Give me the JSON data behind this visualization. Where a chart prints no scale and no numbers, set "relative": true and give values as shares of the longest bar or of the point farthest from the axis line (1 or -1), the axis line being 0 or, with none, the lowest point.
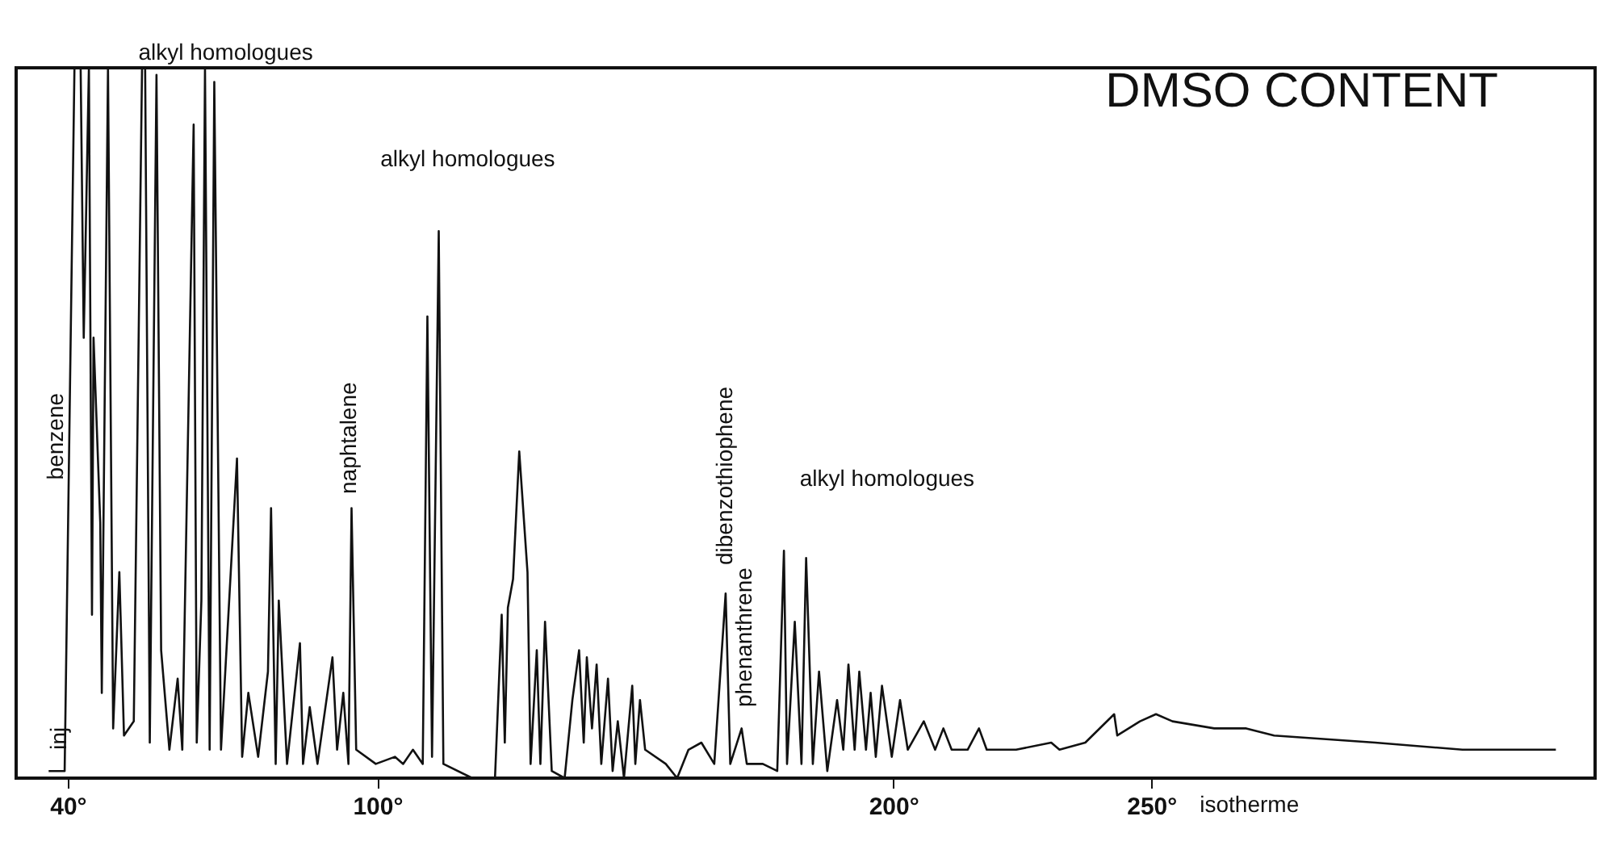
{
  "chart_data": {
    "type": "line",
    "title": "DMSO CONTENT",
    "relative": true,
    "color": "#111111",
    "line_style": "solid",
    "marker": "none",
    "grid": false,
    "tick_labels": "x",
    "xlim": [
      30,
      336
    ],
    "xticks": [
      {
        "value": 40,
        "label": "40°"
      },
      {
        "value": 100,
        "label": "100°"
      },
      {
        "value": 200,
        "label": "200°"
      },
      {
        "value": 250,
        "label": "250°"
      }
    ],
    "x": [
      36.3,
      39.4,
      41.3,
      42.5,
      43.1,
      44.1,
      44.7,
      45.0,
      46.3,
      46.6,
      47.8,
      48.8,
      50.0,
      50.9,
      52.8,
      54.4,
      55.0,
      55.9,
      57.2,
      58.1,
      59.7,
      61.3,
      62.2,
      64.4,
      65.0,
      65.9,
      66.6,
      67.5,
      68.4,
      69.7,
      72.8,
      73.8,
      75.0,
      76.9,
      78.8,
      79.4,
      80.3,
      80.9,
      82.5,
      85.0,
      85.6,
      86.9,
      88.4,
      91.3,
      92.2,
      93.4,
      94.4,
      95.0,
      95.9,
      99.7,
      103.4,
      105.0,
      106.9,
      108.8,
      109.7,
      110.6,
      111.9,
      112.8,
      118.4,
      122.8,
      124.1,
      124.7,
      125.3,
      126.3,
      127.5,
      129.1,
      129.7,
      130.9,
      131.6,
      132.5,
      133.8,
      136.3,
      137.8,
      139.1,
      140.0,
      140.6,
      141.6,
      142.5,
      143.4,
      144.7,
      145.6,
      146.6,
      147.8,
      149.4,
      150.0,
      150.9,
      151.9,
      155.9,
      158.1,
      160.3,
      162.8,
      165.3,
      167.5,
      168.4,
      170.6,
      171.6,
      174.7,
      177.5,
      178.8,
      179.4,
      180.9,
      182.2,
      183.1,
      184.4,
      185.6,
      187.2,
      189.1,
      190.3,
      191.3,
      192.5,
      193.4,
      194.7,
      195.6,
      196.6,
      197.8,
      199.7,
      201.3,
      202.8,
      205.9,
      208.1,
      209.7,
      211.3,
      214.4,
      216.6,
      218.1,
      223.8,
      230.6,
      232.2,
      237.2,
      242.8,
      243.4,
      247.8,
      250.9,
      254.1,
      262.2,
      268.4,
      273.8,
      293.4,
      310.3,
      328.4
    ],
    "values": [
      0.01,
      0.01,
      1,
      1,
      0.62,
      1,
      0.23,
      0.62,
      0.36,
      0.12,
      1,
      0.07,
      0.29,
      0.06,
      0.08,
      1,
      1,
      0.05,
      0.99,
      0.18,
      0.04,
      0.14,
      0.04,
      0.92,
      0.05,
      0.25,
      1,
      0.04,
      0.98,
      0.04,
      0.45,
      0.03,
      0.12,
      0.03,
      0.15,
      0.38,
      0.02,
      0.25,
      0.02,
      0.19,
      0.02,
      0.1,
      0.02,
      0.17,
      0.04,
      0.12,
      0.02,
      0.38,
      0.04,
      0.02,
      0.03,
      0.02,
      0.04,
      0.02,
      0.65,
      0.03,
      0.77,
      0.02,
      0,
      0,
      0.23,
      0.05,
      0.24,
      0.28,
      0.46,
      0.29,
      0.02,
      0.18,
      0.02,
      0.22,
      0.01,
      0,
      0.11,
      0.18,
      0.05,
      0.17,
      0.07,
      0.16,
      0.02,
      0.14,
      0.01,
      0.08,
      0,
      0.13,
      0.02,
      0.11,
      0.04,
      0.02,
      0,
      0.04,
      0.05,
      0.02,
      0.26,
      0.02,
      0.07,
      0.02,
      0.02,
      0.01,
      0.32,
      0.02,
      0.22,
      0.02,
      0.31,
      0.02,
      0.15,
      0.01,
      0.11,
      0.04,
      0.16,
      0.04,
      0.15,
      0.04,
      0.12,
      0.03,
      0.13,
      0.03,
      0.11,
      0.04,
      0.08,
      0.04,
      0.07,
      0.04,
      0.04,
      0.07,
      0.04,
      0.04,
      0.05,
      0.04,
      0.05,
      0.09,
      0.06,
      0.08,
      0.09,
      0.08,
      0.07,
      0.07,
      0.06,
      0.05,
      0.04,
      0.04
    ],
    "annotations": [
      "benzene",
      "naphtalene",
      "dibenzothiophene",
      "phenanthrene",
      "inj",
      "alkyl homologues",
      "alkyl homologues",
      "alkyl homologues",
      "isotherme"
    ]
  }
}
